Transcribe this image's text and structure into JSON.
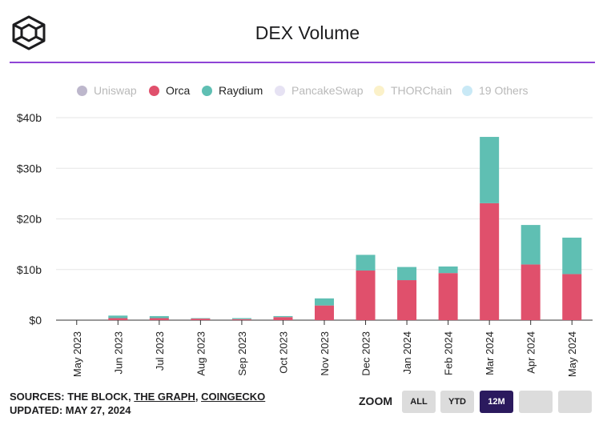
{
  "title": "DEX Volume",
  "legend": [
    {
      "label": "Uniswap",
      "color": "#bdb7cc",
      "active": false
    },
    {
      "label": "Orca",
      "color": "#e0506c",
      "active": true
    },
    {
      "label": "Raydium",
      "color": "#5fbfb3",
      "active": true
    },
    {
      "label": "PancakeSwap",
      "color": "#e6e2f3",
      "active": false
    },
    {
      "label": "THORChain",
      "color": "#fbf1c9",
      "active": false
    },
    {
      "label": "19 Others",
      "color": "#c9e9f6",
      "active": false
    }
  ],
  "chart_data": {
    "type": "bar",
    "stacked": true,
    "categories": [
      "May 2023",
      "Jun 2023",
      "Jul 2023",
      "Aug 2023",
      "Sep 2023",
      "Oct 2023",
      "Nov 2023",
      "Dec 2023",
      "Jan 2024",
      "Feb 2024",
      "Mar 2024",
      "Apr 2024",
      "May 2024"
    ],
    "series": [
      {
        "name": "Orca",
        "color": "#e0506c",
        "values": [
          0,
          0.4,
          0.4,
          0.3,
          0.2,
          0.6,
          2.9,
          9.8,
          7.9,
          9.3,
          23.1,
          11.0,
          9.1
        ]
      },
      {
        "name": "Raydium",
        "color": "#5fbfb3",
        "values": [
          0,
          0.5,
          0.4,
          0.1,
          0.2,
          0.2,
          1.4,
          3.1,
          2.6,
          1.3,
          13.1,
          7.8,
          7.2
        ]
      }
    ],
    "y_ticks": [
      0,
      10,
      20,
      30,
      40
    ],
    "y_tick_labels": [
      "$0",
      "$10b",
      "$20b",
      "$30b",
      "$40b"
    ],
    "ylim": [
      0,
      40
    ],
    "grid": true,
    "legend_position": "top"
  },
  "footer": {
    "sources_prefix": "SOURCES: THE BLOCK, ",
    "source_link_1": "THE GRAPH",
    "separator": ", ",
    "source_link_2": "COINGECKO",
    "updated": "UPDATED: MAY 27, 2024"
  },
  "zoom": {
    "label": "ZOOM",
    "buttons": [
      {
        "label": "ALL",
        "active": false
      },
      {
        "label": "YTD",
        "active": false
      },
      {
        "label": "12M",
        "active": true
      },
      {
        "label": "",
        "active": false
      },
      {
        "label": "",
        "active": false
      }
    ]
  }
}
